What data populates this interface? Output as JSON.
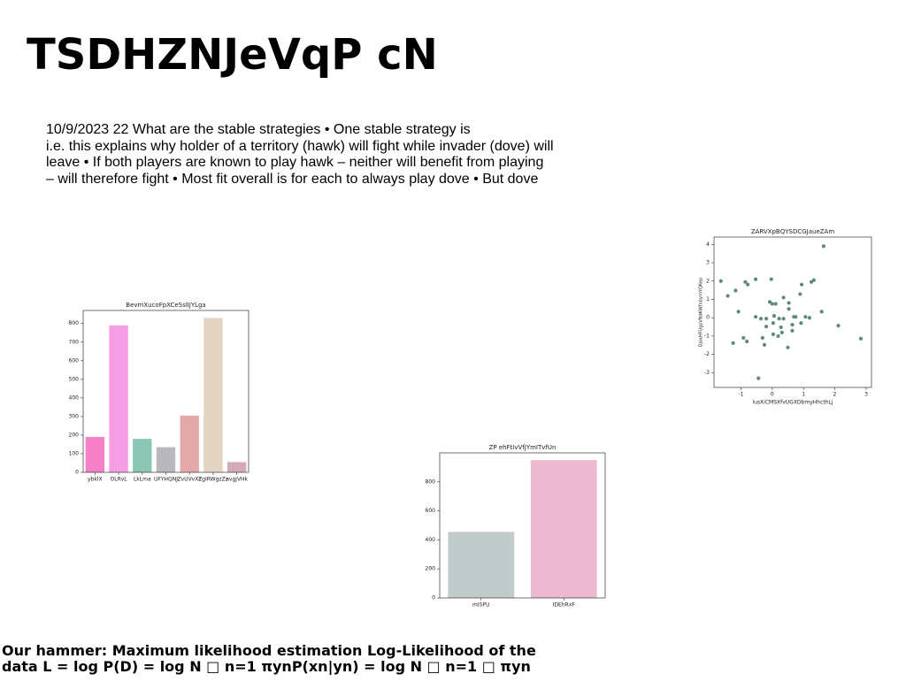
{
  "title": "TSDHZNJeVqP cN",
  "body": [
    "10/9/2023 22 What are the stable strategies • One stable strategy is",
    "i.e. this explains why holder of a territory (hawk) will fight while invader (dove) will",
    "leave • If both players are known to play hawk – neither will benefit from playing",
    "– will therefore fight • Most fit overall is for each to always play dove • But dove"
  ],
  "footer": [
    "Our hammer: Maximum likelihood estimation Log-Likelihood of the",
    "data L = log P(D) = log N □ n=1 πynP(xn|yn) = log N □ n=1 □ πyn"
  ],
  "chart_data": [
    {
      "type": "bar",
      "title": "BevmXucoFpXCeSslIJYLga",
      "categories": [
        "ybklX",
        "OLRvL",
        "LkLma",
        "UFYHQNJ",
        "ZvUVvXT",
        "ZgIRWgzZz",
        "avgjVHk"
      ],
      "values": [
        190,
        790,
        180,
        135,
        305,
        830,
        55
      ],
      "colors": [
        "#f77fc8",
        "#f59ee6",
        "#8cc7b6",
        "#b8b8bd",
        "#e5a8ab",
        "#e3d4c4",
        "#d3aab5"
      ],
      "ylim": [
        0,
        870
      ],
      "yticks": [
        0,
        100,
        200,
        300,
        400,
        500,
        600,
        700,
        800
      ]
    },
    {
      "type": "scatter",
      "title": "ZARVXpBQYSDCGJaueZAm",
      "xlabel": "lusXiCMSXfvUGXDbmyHhcthLj",
      "ylabel": "DjoxHFUgyVNdKWfnbyrnYQKep",
      "color": "#5e8a7e",
      "x": [
        -1.64,
        -1.42,
        -1.17,
        -1.08,
        -1.25,
        -0.92,
        -0.81,
        -0.86,
        -0.78,
        -0.53,
        -0.03,
        -0.53,
        -0.36,
        -0.19,
        -0.19,
        -0.31,
        -0.25,
        -0.44,
        -0.08,
        0,
        0.11,
        0.06,
        0.03,
        0.03,
        0.19,
        0.22,
        0.36,
        0.28,
        0.31,
        0.36,
        0.53,
        0.53,
        0.64,
        0.64,
        0.69,
        0.75,
        0.5,
        0.89,
        0.94,
        0.92,
        1.06,
        1.19,
        1.25,
        1.33,
        1.58,
        1.64,
        2.11,
        2.83
      ],
      "values": [
        2.0,
        1.19,
        1.48,
        0.33,
        -1.38,
        -1.1,
        -1.29,
        1.95,
        1.81,
        2.1,
        2.1,
        0.05,
        -0.05,
        -0.05,
        -0.48,
        -1.1,
        -1.48,
        -3.3,
        0.86,
        0.76,
        0.76,
        0.1,
        -0.29,
        -0.9,
        -1.0,
        -0.05,
        -0.05,
        -0.52,
        -0.81,
        1.1,
        0.81,
        0.48,
        -0.38,
        -0.71,
        0.05,
        0.05,
        -1.62,
        1.29,
        1.81,
        -0.29,
        0.05,
        0,
        1.95,
        2.05,
        0.33,
        3.9,
        -0.43,
        -1.14
      ],
      "xlim": [
        -1.86,
        3.17
      ],
      "ylim": [
        -3.8,
        4.4
      ],
      "xticks": [
        -1,
        0,
        1,
        2,
        3
      ],
      "yticks": [
        -3,
        -2,
        -1,
        0,
        1,
        2,
        3,
        4
      ]
    },
    {
      "type": "bar",
      "title": "ZP ehFtIvVfJYmITvfUn",
      "categories": [
        "mISPU",
        "IDEhRxF"
      ],
      "values": [
        455,
        950
      ],
      "colors": [
        "#c2cbcb",
        "#ebb9d0"
      ],
      "ylim": [
        0,
        1000
      ],
      "yticks": [
        0,
        200,
        400,
        600,
        800
      ]
    }
  ]
}
